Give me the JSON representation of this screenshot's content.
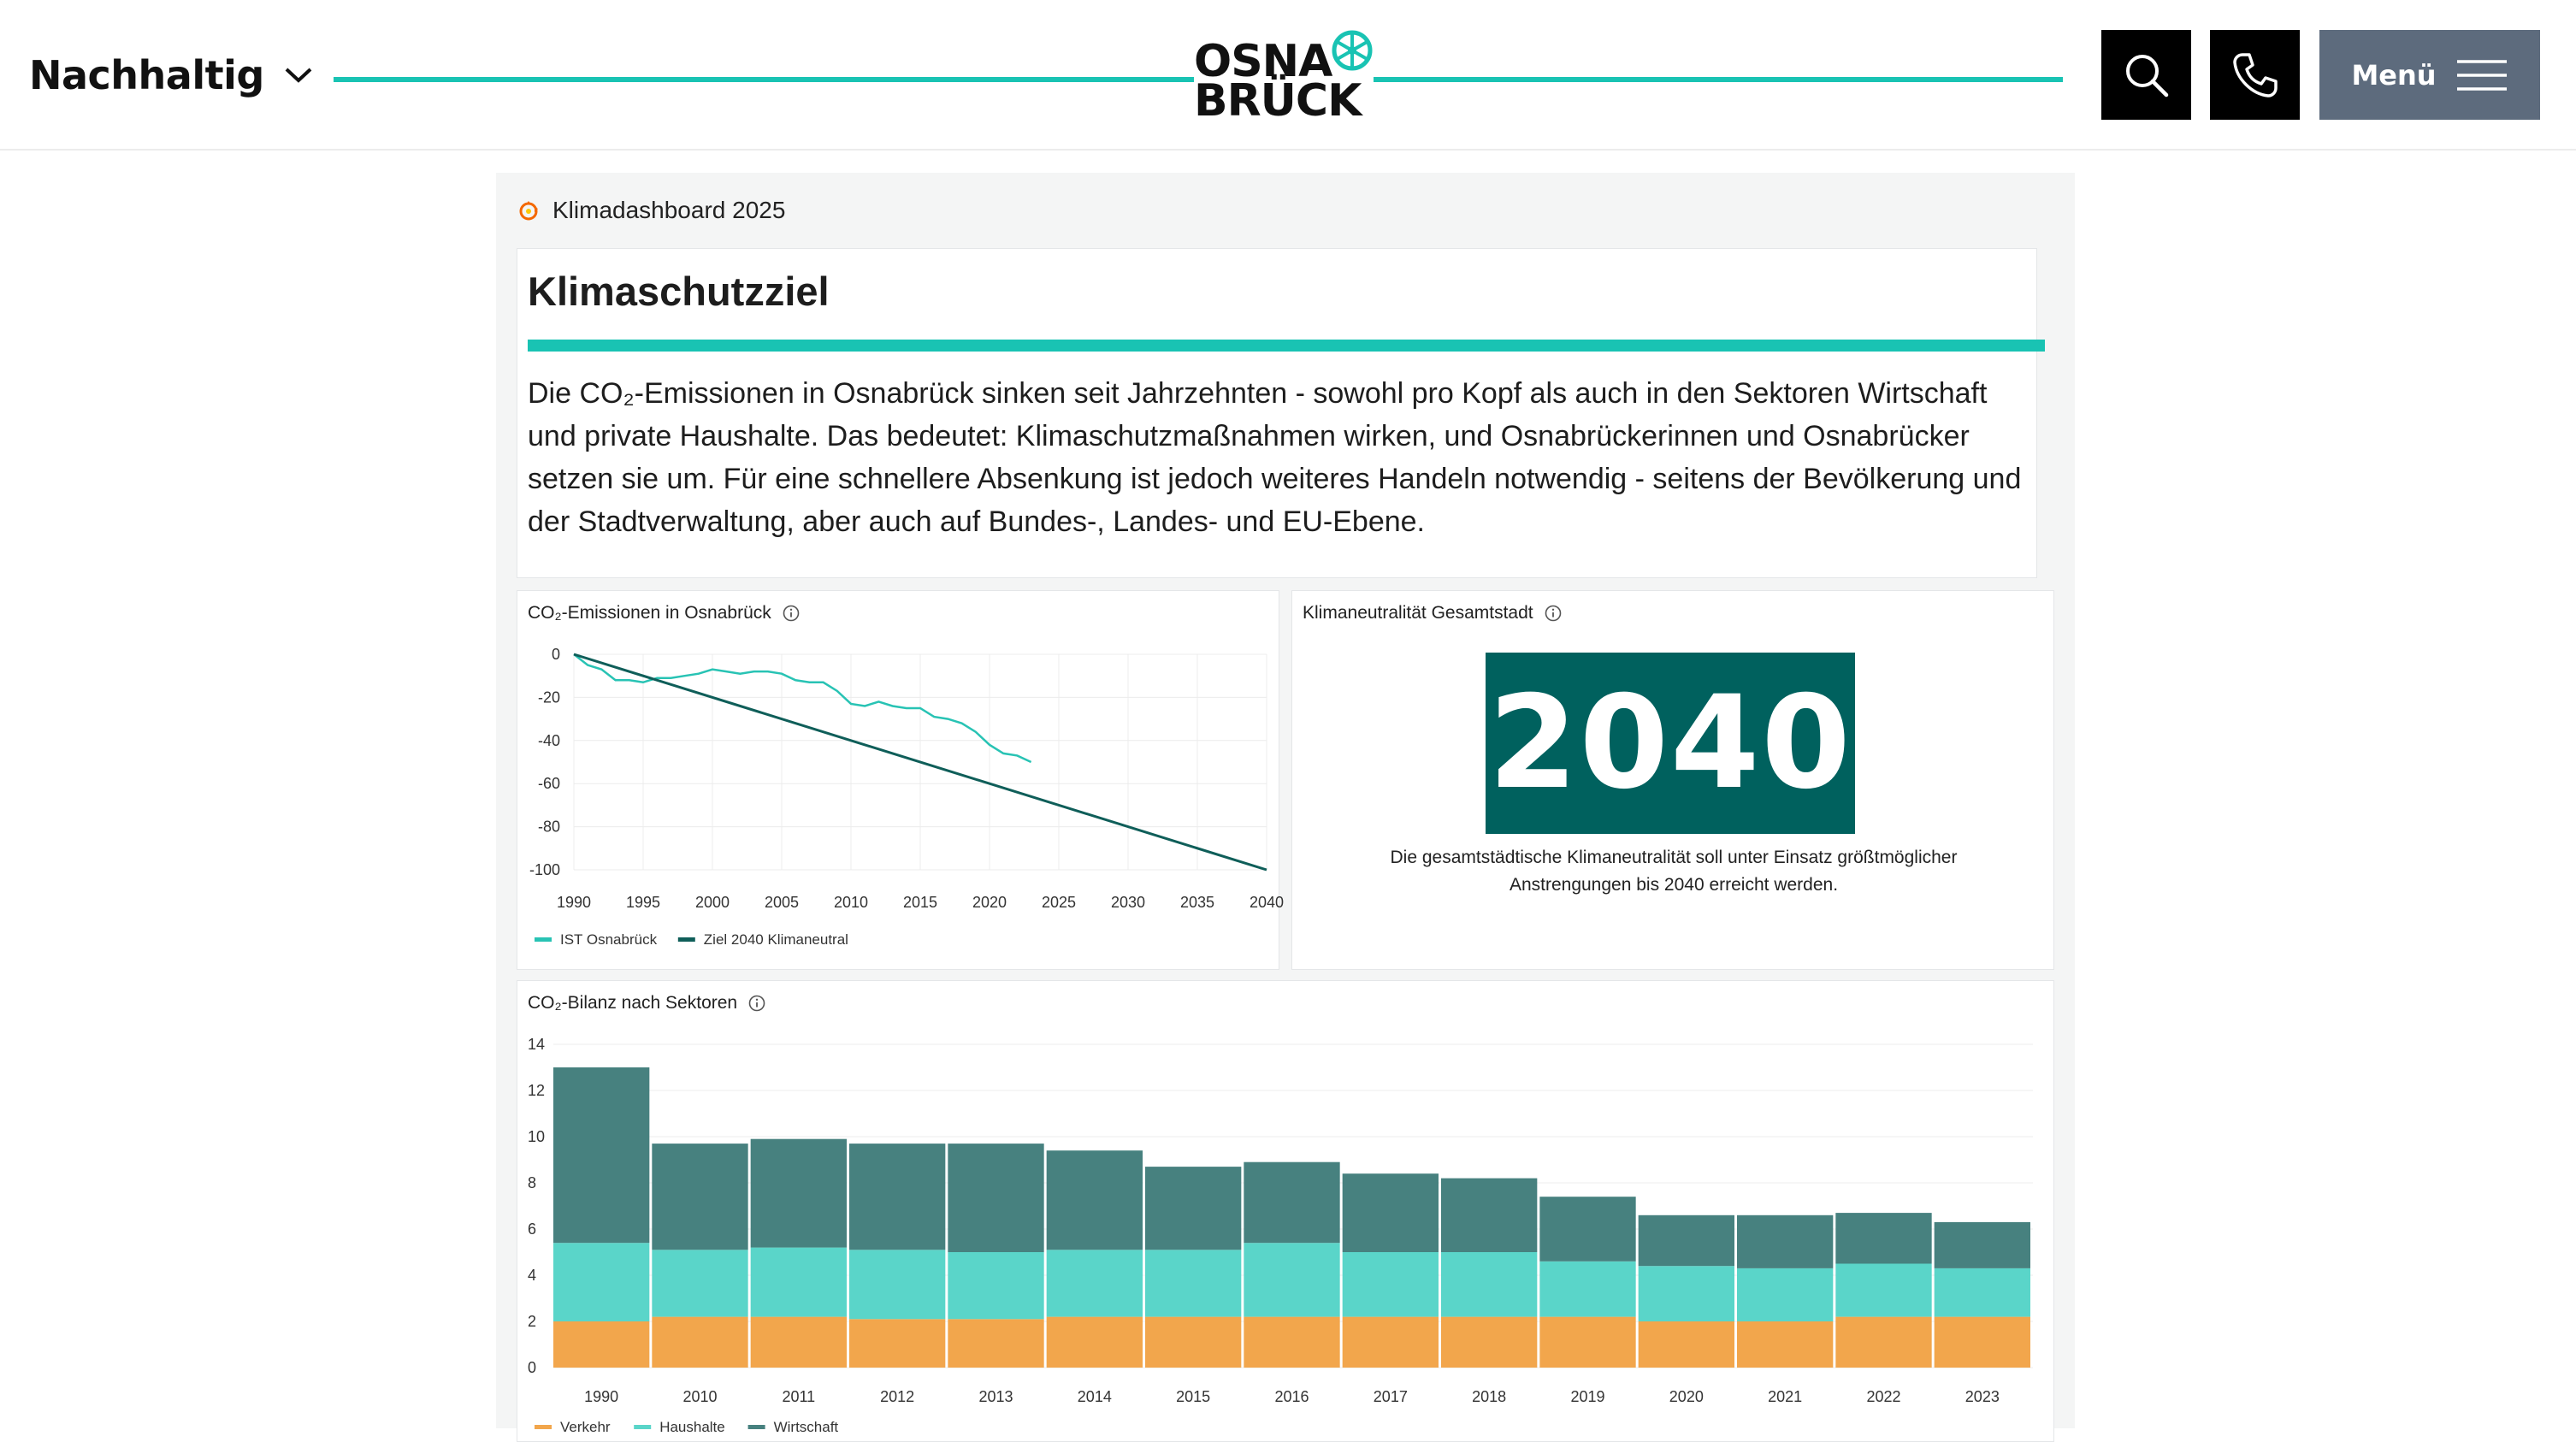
{
  "header": {
    "section_label": "Nachhaltig",
    "logo_line1": "OSNA",
    "logo_line2": "BRÜCK",
    "menu_label": "Menü"
  },
  "dashboard": {
    "title": "Klimadashboard 2025",
    "intro": {
      "heading": "Klimaschutzziel",
      "text": "Die CO₂-Emissionen in Osnabrück sinken seit Jahrzehnten - sowohl pro Kopf als auch in den Sektoren Wirtschaft und private Haushalte. Das bedeutet: Klimaschutzmaßnahmen wirken, und Osnabrückerinnen und Osnabrücker setzen sie um. Für eine schnellere Absenkung ist jedoch weiteres Handeln notwendig - seitens der Bevölkerung und der Stadtverwaltung, aber auch auf Bundes-, Landes- und EU-Ebene."
    },
    "kpi": {
      "title": "Klimaneutralität Gesamtstadt",
      "value": "2040",
      "description": "Die gesamtstädtische Klimaneutralität soll unter Einsatz größtmöglicher Anstrengungen bis 2040 erreicht werden."
    }
  },
  "colors": {
    "accent": "#19c3b3",
    "dark_teal": "#0f5e59",
    "kpi_bg": "#00615e",
    "verkehr": "#f2a64c",
    "haushalte": "#5ad5c9",
    "wirtschaft": "#47817f"
  },
  "chart_data": [
    {
      "type": "line",
      "title": "CO₂-Emissionen in Osnabrück",
      "xlabel": "",
      "ylabel": "",
      "xlim": [
        1990,
        2040
      ],
      "ylim": [
        -100,
        0
      ],
      "x_ticks": [
        1990,
        1995,
        2000,
        2005,
        2010,
        2015,
        2020,
        2025,
        2030,
        2035,
        2040
      ],
      "y_ticks": [
        0,
        -20,
        -40,
        -60,
        -80,
        -100
      ],
      "legend": "bottom-left",
      "series": [
        {
          "name": "IST Osnabrück",
          "color": "#28c3b4",
          "points": [
            [
              1990,
              0
            ],
            [
              1991,
              -5
            ],
            [
              1992,
              -7
            ],
            [
              1993,
              -12
            ],
            [
              1994,
              -12
            ],
            [
              1995,
              -13
            ],
            [
              1996,
              -11
            ],
            [
              1997,
              -11
            ],
            [
              1998,
              -10
            ],
            [
              1999,
              -9
            ],
            [
              2000,
              -7
            ],
            [
              2001,
              -8
            ],
            [
              2002,
              -9
            ],
            [
              2003,
              -8
            ],
            [
              2004,
              -8
            ],
            [
              2005,
              -9
            ],
            [
              2006,
              -12
            ],
            [
              2007,
              -13
            ],
            [
              2008,
              -13
            ],
            [
              2009,
              -17
            ],
            [
              2010,
              -23
            ],
            [
              2011,
              -24
            ],
            [
              2012,
              -22
            ],
            [
              2013,
              -24
            ],
            [
              2014,
              -25
            ],
            [
              2015,
              -25
            ],
            [
              2016,
              -29
            ],
            [
              2017,
              -30
            ],
            [
              2018,
              -32
            ],
            [
              2019,
              -36
            ],
            [
              2020,
              -42
            ],
            [
              2021,
              -46
            ],
            [
              2022,
              -47
            ],
            [
              2023,
              -50
            ]
          ]
        },
        {
          "name": "Ziel 2040 Klimaneutral",
          "color": "#0f5e59",
          "points": [
            [
              1990,
              0
            ],
            [
              2040,
              -100
            ]
          ]
        }
      ]
    },
    {
      "type": "bar",
      "stacked": true,
      "title": "CO₂-Bilanz nach Sektoren",
      "xlabel": "",
      "ylabel": "",
      "ylim": [
        0,
        14
      ],
      "y_ticks": [
        0,
        2,
        4,
        6,
        8,
        10,
        12,
        14
      ],
      "legend": "bottom-left",
      "categories": [
        "1990",
        "2010",
        "2011",
        "2012",
        "2013",
        "2014",
        "2015",
        "2016",
        "2017",
        "2018",
        "2019",
        "2020",
        "2021",
        "2022",
        "2023"
      ],
      "series": [
        {
          "name": "Verkehr",
          "color": "#f2a64c",
          "values": [
            2.0,
            2.2,
            2.2,
            2.1,
            2.1,
            2.2,
            2.2,
            2.2,
            2.2,
            2.2,
            2.2,
            2.0,
            2.0,
            2.2,
            2.2
          ]
        },
        {
          "name": "Haushalte",
          "color": "#5ad5c9",
          "values": [
            3.4,
            2.9,
            3.0,
            3.0,
            2.9,
            2.9,
            2.9,
            3.2,
            2.8,
            2.8,
            2.4,
            2.4,
            2.3,
            2.3,
            2.1
          ]
        },
        {
          "name": "Wirtschaft",
          "color": "#47817f",
          "values": [
            7.6,
            4.6,
            4.7,
            4.6,
            4.7,
            4.3,
            3.6,
            3.5,
            3.4,
            3.2,
            2.8,
            2.2,
            2.3,
            2.2,
            2.0
          ]
        }
      ]
    }
  ]
}
